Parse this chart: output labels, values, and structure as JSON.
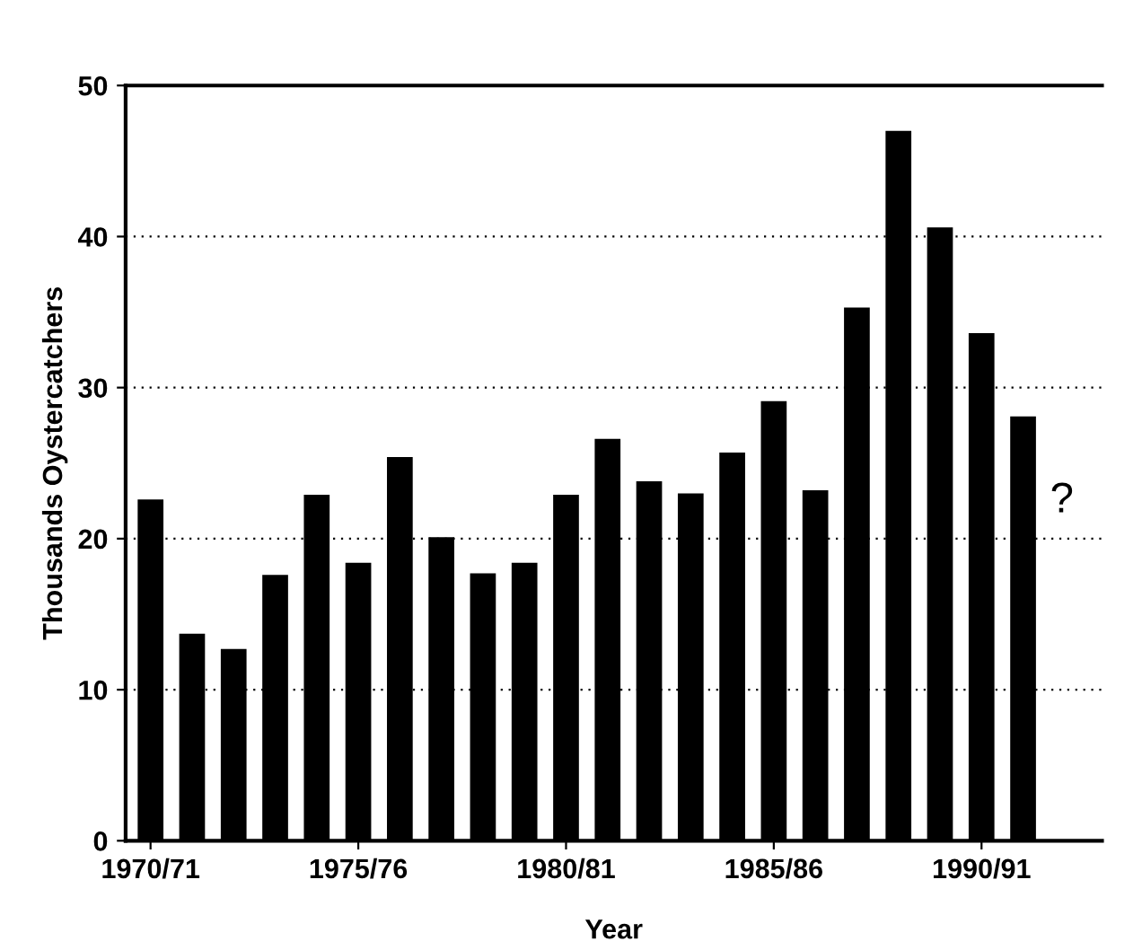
{
  "chart_data": {
    "type": "bar",
    "xlabel": "Year",
    "ylabel": "Thousands Oystercatchers",
    "categories": [
      "1970/71",
      null,
      null,
      null,
      null,
      "1975/76",
      null,
      null,
      null,
      null,
      "1980/81",
      null,
      null,
      null,
      null,
      "1985/86",
      null,
      null,
      null,
      null,
      "1990/91",
      null
    ],
    "values": [
      22.6,
      13.7,
      12.7,
      17.6,
      22.9,
      18.4,
      25.4,
      20.1,
      17.7,
      18.4,
      22.9,
      26.6,
      23.8,
      23.0,
      25.7,
      29.1,
      23.2,
      35.3,
      47.0,
      40.6,
      33.6,
      28.1
    ],
    "color": "#000000",
    "ylim": [
      0,
      50
    ],
    "yticks": [
      0,
      10,
      20,
      30,
      40,
      50
    ],
    "grid": "y",
    "annotations": [
      "?"
    ]
  }
}
